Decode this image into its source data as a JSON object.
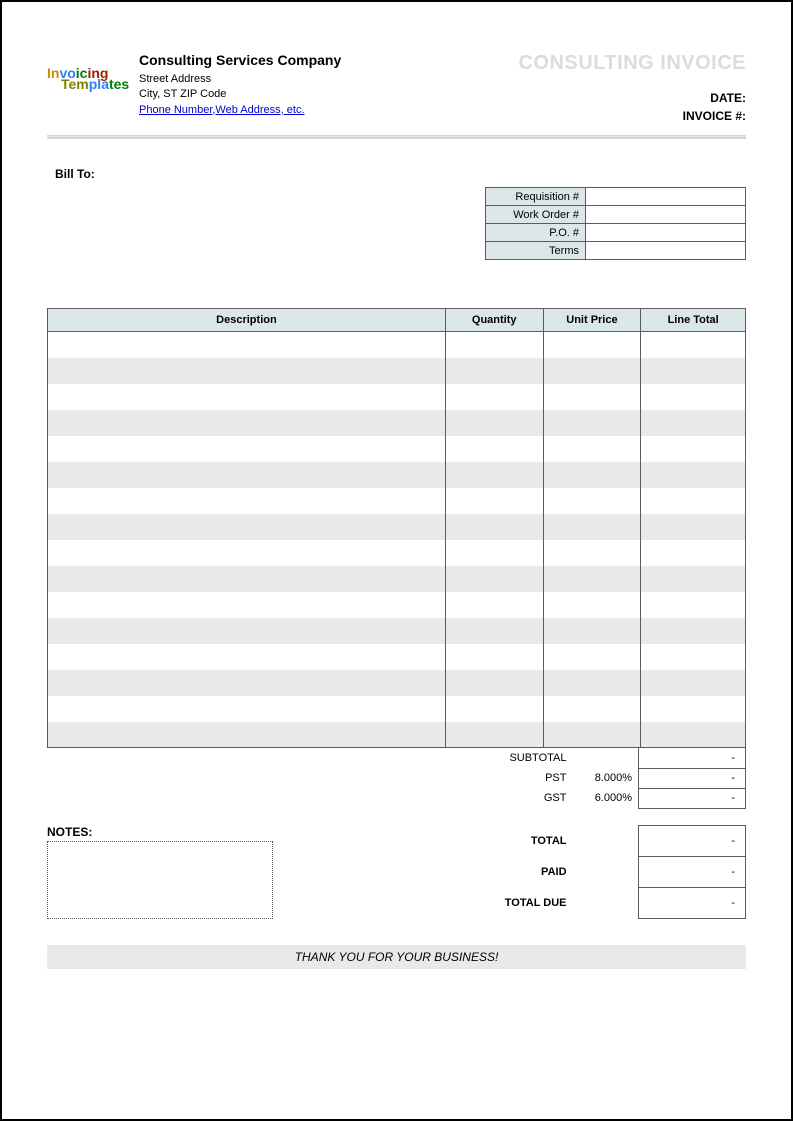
{
  "colors": {
    "header_fill": "#dbe6e8",
    "alt_row": "#e9e9e9",
    "border": "#5b5b5b",
    "title_ghost": "#d8dde1",
    "link": "#0000d0"
  },
  "company": {
    "name": "Consulting Services Company",
    "address_line1": "Street Address",
    "address_line2": "City, ST  ZIP Code",
    "contact_link": "Phone Number,Web Address, etc."
  },
  "logo_text": "InvoicingTemplates",
  "document": {
    "title": "CONSULTING INVOICE",
    "date_label": "DATE:",
    "invoice_no_label": "INVOICE #:",
    "date_value": "",
    "invoice_no_value": ""
  },
  "bill_to_label": "Bill To:",
  "reference_box": {
    "rows": [
      {
        "label": "Requisition #",
        "value": ""
      },
      {
        "label": "Work Order #",
        "value": ""
      },
      {
        "label": "P.O. #",
        "value": ""
      },
      {
        "label": "Terms",
        "value": ""
      }
    ]
  },
  "items_table": {
    "columns": [
      "Description",
      "Quantity",
      "Unit Price",
      "Line Total"
    ],
    "row_count": 16
  },
  "totals": {
    "subtotal_label": "SUBTOTAL",
    "subtotal_value": "-",
    "tax1_label": "PST",
    "tax1_rate": "8.000%",
    "tax1_value": "-",
    "tax2_label": "GST",
    "tax2_rate": "6.000%",
    "tax2_value": "-",
    "total_label": "TOTAL",
    "total_value": "-",
    "paid_label": "PAID",
    "paid_value": "-",
    "due_label": "TOTAL DUE",
    "due_value": "-"
  },
  "notes_label": "NOTES:",
  "footer_message": "THANK YOU FOR YOUR BUSINESS!"
}
